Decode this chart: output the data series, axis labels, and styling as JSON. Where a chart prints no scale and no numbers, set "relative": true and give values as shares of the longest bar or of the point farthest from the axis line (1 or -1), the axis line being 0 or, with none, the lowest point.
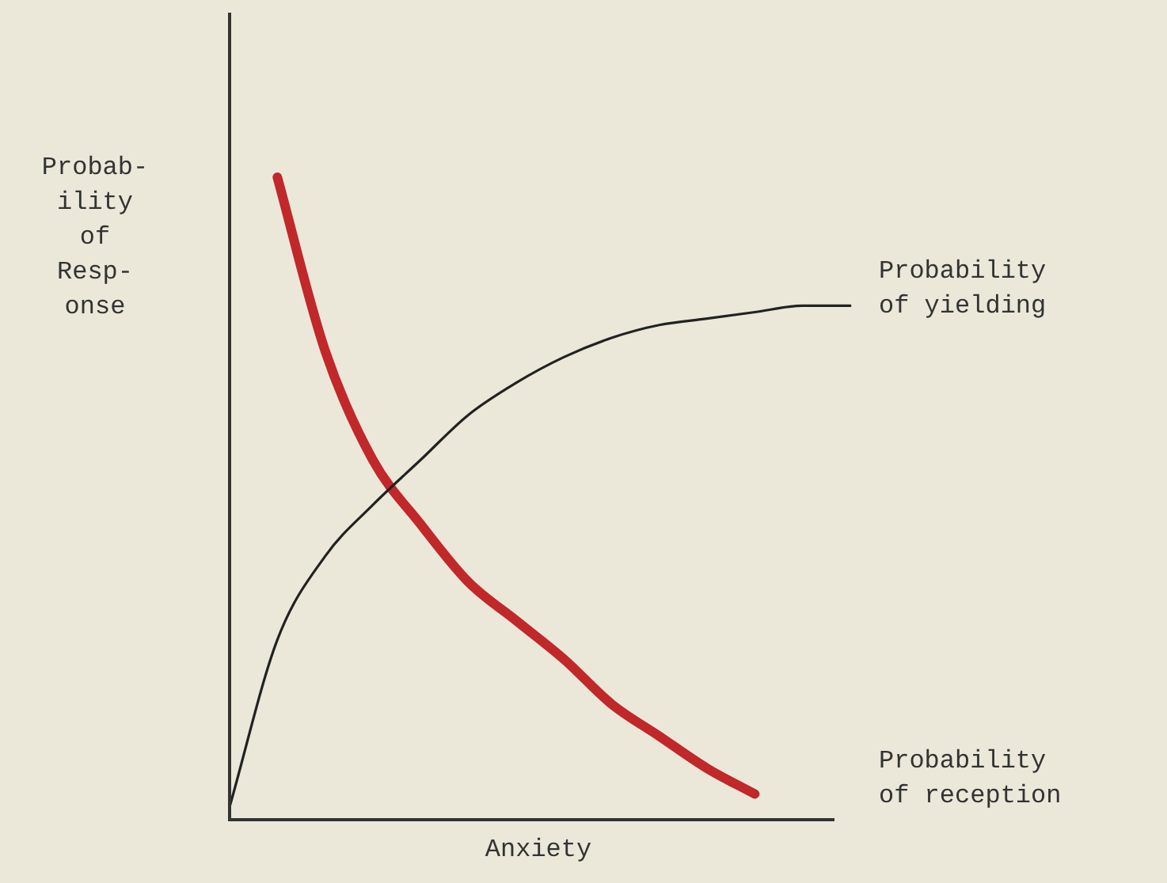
{
  "chart_data": {
    "type": "line",
    "relative": true,
    "xlabel": "Anxiety",
    "ylabel": "Probab-\nility\nof\nResp-\nonse",
    "categories": [
      null,
      null,
      null,
      null,
      null,
      null,
      null,
      null,
      null,
      null,
      null,
      null,
      null,
      null
    ],
    "series": [
      {
        "name": "Probability of yielding",
        "color": "#222222",
        "values": [
          0.02,
          0.28,
          0.41,
          0.49,
          0.56,
          0.63,
          0.68,
          0.72,
          0.75,
          0.77,
          0.78,
          0.79,
          0.8,
          0.8
        ]
      },
      {
        "name": "Probability of reception",
        "color": "#c0282a",
        "values": [
          null,
          1.0,
          0.73,
          0.56,
          0.46,
          0.37,
          0.31,
          0.25,
          0.18,
          0.13,
          0.08,
          0.04,
          null,
          null
        ]
      }
    ],
    "legend": false,
    "grid": false,
    "marker": "none"
  }
}
